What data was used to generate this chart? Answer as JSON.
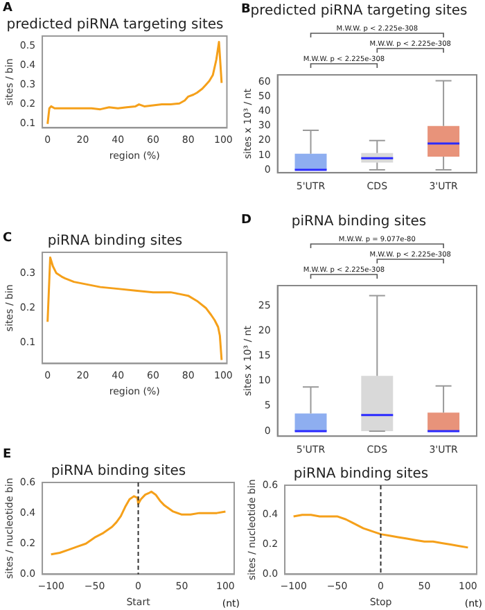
{
  "chart_data": [
    {
      "type": "line",
      "title": "predicted piRNA targeting sites",
      "xlabel": "region (%)",
      "ylabel": "sites / bin",
      "annotations": [
        "A"
      ],
      "xlim": [
        -3,
        102
      ],
      "xticks": [
        0,
        20,
        40,
        60,
        80,
        100
      ],
      "ylim": [
        0.08,
        0.55
      ],
      "yticks": [
        0.1,
        0.2,
        0.3,
        0.4,
        0.5
      ],
      "series": [
        {
          "color": "#f5a01a",
          "x": [
            0,
            1,
            2,
            4,
            6,
            10,
            15,
            20,
            25,
            30,
            35,
            40,
            45,
            50,
            52,
            55,
            60,
            65,
            70,
            75,
            78,
            80,
            83,
            85,
            88,
            90,
            92,
            94,
            96,
            97.5,
            99
          ],
          "values": [
            0.1,
            0.18,
            0.19,
            0.18,
            0.18,
            0.18,
            0.18,
            0.18,
            0.18,
            0.175,
            0.185,
            0.18,
            0.185,
            0.19,
            0.2,
            0.19,
            0.195,
            0.2,
            0.2,
            0.205,
            0.22,
            0.24,
            0.25,
            0.26,
            0.28,
            0.3,
            0.32,
            0.35,
            0.43,
            0.52,
            0.31
          ]
        }
      ]
    },
    {
      "type": "box",
      "title": "predicted piRNA targeting sites",
      "ylabel": "sites x 10³ / nt",
      "annotations": [
        "B",
        "M.W.W. p < 2.225e-308",
        "M.W.W. p < 2.225e-308",
        "M.W.W. p < 2.225e-308"
      ],
      "categories": [
        "5'UTR",
        "CDS",
        "3'UTR"
      ],
      "colors": [
        "#8eaef0",
        "#d9d9d9",
        "#e8937a"
      ],
      "ylim": [
        -2,
        65
      ],
      "yticks": [
        0,
        10,
        20,
        30,
        40,
        50,
        60
      ],
      "boxes": [
        {
          "low": 0,
          "q1": 0,
          "median": 0,
          "q3": 11,
          "high": 27
        },
        {
          "low": 0,
          "q1": 5,
          "median": 8,
          "q3": 11.5,
          "high": 20
        },
        {
          "low": 0,
          "q1": 9,
          "median": 18,
          "q3": 30,
          "high": 61
        }
      ]
    },
    {
      "type": "line",
      "title": "piRNA binding sites",
      "xlabel": "region (%)",
      "ylabel": "sites / bin",
      "annotations": [
        "C"
      ],
      "xlim": [
        -3,
        102
      ],
      "xticks": [
        0,
        20,
        40,
        60,
        80,
        100
      ],
      "ylim": [
        0.04,
        0.36
      ],
      "yticks": [
        0.1,
        0.2,
        0.3
      ],
      "series": [
        {
          "color": "#f5a01a",
          "x": [
            0,
            1.5,
            3,
            5,
            8,
            10,
            15,
            20,
            30,
            40,
            50,
            60,
            70,
            75,
            80,
            85,
            90,
            93,
            95,
            97,
            98,
            99
          ],
          "values": [
            0.16,
            0.345,
            0.32,
            0.3,
            0.29,
            0.285,
            0.275,
            0.27,
            0.26,
            0.255,
            0.25,
            0.245,
            0.245,
            0.24,
            0.235,
            0.22,
            0.2,
            0.18,
            0.165,
            0.145,
            0.12,
            0.05
          ]
        }
      ]
    },
    {
      "type": "box",
      "title": "piRNA binding sites",
      "ylabel": "sites x 10³ / nt",
      "annotations": [
        "D",
        "M.W.W. p = 9.077e-80",
        "M.W.W. p < 2.225e-308",
        "M.W.W. p < 2.225e-308"
      ],
      "categories": [
        "5'UTR",
        "CDS",
        "3'UTR"
      ],
      "colors": [
        "#8eaef0",
        "#d9d9d9",
        "#e8937a"
      ],
      "ylim": [
        -1,
        29
      ],
      "yticks": [
        0,
        5,
        10,
        15,
        20,
        25
      ],
      "boxes": [
        {
          "low": 0,
          "q1": 0,
          "median": 0,
          "q3": 3.5,
          "high": 8.8
        },
        {
          "low": 0,
          "q1": 0,
          "median": 3.2,
          "q3": 11,
          "high": 27
        },
        {
          "low": 0,
          "q1": 0,
          "median": 0,
          "q3": 3.7,
          "high": 9
        }
      ]
    },
    {
      "type": "line",
      "title": "piRNA binding sites",
      "xlabel": "Start",
      "ylabel": "sites / nucleotide bin",
      "annotations": [
        "E",
        "(nt)"
      ],
      "xlim": [
        -110,
        110
      ],
      "xticks": [
        -100,
        -50,
        0,
        50,
        100
      ],
      "ylim": [
        0,
        0.6
      ],
      "yticks": [
        {
          "value": 0,
          "label": "0.0"
        },
        0.2,
        0.4,
        0.6
      ],
      "ref_lines": [
        {
          "axis": "x",
          "value": 0,
          "color": "#333333",
          "line_style": "dashed"
        }
      ],
      "series": [
        {
          "color": "#f5a01a",
          "x": [
            -100,
            -90,
            -80,
            -70,
            -60,
            -50,
            -40,
            -30,
            -25,
            -20,
            -15,
            -10,
            -5,
            -1,
            0,
            3,
            8,
            12,
            15,
            20,
            25,
            30,
            40,
            50,
            60,
            70,
            80,
            90,
            100
          ],
          "values": [
            0.13,
            0.14,
            0.16,
            0.18,
            0.2,
            0.24,
            0.27,
            0.31,
            0.34,
            0.38,
            0.44,
            0.49,
            0.51,
            0.5,
            0.46,
            0.49,
            0.52,
            0.53,
            0.54,
            0.52,
            0.48,
            0.45,
            0.41,
            0.39,
            0.39,
            0.4,
            0.4,
            0.4,
            0.41
          ]
        }
      ]
    },
    {
      "type": "line",
      "title": "piRNA binding sites",
      "xlabel": "Stop",
      "ylabel": "sites / nucleotide bin",
      "annotations": [
        "(nt)"
      ],
      "xlim": [
        -110,
        110
      ],
      "xticks": [
        -100,
        -50,
        0,
        50,
        100
      ],
      "ylim": [
        0,
        0.6
      ],
      "yticks": [
        {
          "value": 0,
          "label": "0.0"
        },
        0.2,
        0.4,
        0.6
      ],
      "ref_lines": [
        {
          "axis": "x",
          "value": 0,
          "color": "#333333",
          "line_style": "dashed"
        }
      ],
      "series": [
        {
          "color": "#f5a01a",
          "x": [
            -100,
            -90,
            -80,
            -70,
            -60,
            -50,
            -40,
            -30,
            -20,
            -10,
            0,
            10,
            20,
            30,
            40,
            50,
            60,
            70,
            80,
            90,
            100
          ],
          "values": [
            0.39,
            0.4,
            0.4,
            0.39,
            0.39,
            0.39,
            0.37,
            0.34,
            0.31,
            0.29,
            0.27,
            0.26,
            0.25,
            0.24,
            0.23,
            0.22,
            0.22,
            0.21,
            0.2,
            0.19,
            0.18
          ]
        }
      ]
    }
  ]
}
